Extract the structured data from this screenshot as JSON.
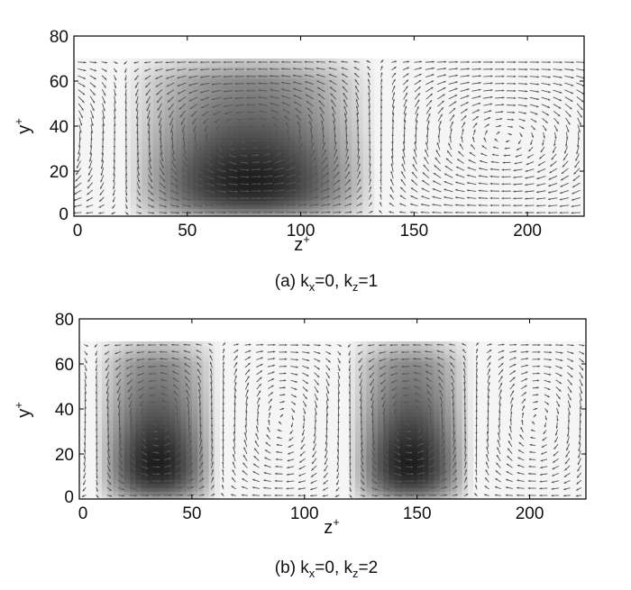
{
  "chart_data": [
    {
      "type": "heatmap",
      "caption": {
        "prefix": "(a) k",
        "sub1": "x",
        "mid": "=0, k",
        "sub2": "z",
        "suffix": "=1"
      },
      "xlabel": {
        "base": "z",
        "sup": "+"
      },
      "ylabel": {
        "base": "y",
        "sup": "+"
      },
      "xlim": [
        0,
        225
      ],
      "ylim": [
        0,
        80
      ],
      "field_top": 70,
      "x_ticks": [
        0,
        50,
        100,
        150,
        200
      ],
      "y_ticks": [
        0,
        20,
        40,
        60,
        80
      ],
      "kz": 1,
      "colormap": "grayscale",
      "vector_overlay": true
    },
    {
      "type": "heatmap",
      "caption": {
        "prefix": "(b) k",
        "sub1": "x",
        "mid": "=0, k",
        "sub2": "z",
        "suffix": "=2"
      },
      "xlabel": {
        "base": "z",
        "sup": "+"
      },
      "ylabel": {
        "base": "y",
        "sup": "+"
      },
      "xlim": [
        0,
        225
      ],
      "ylim": [
        0,
        80
      ],
      "field_top": 70,
      "x_ticks": [
        0,
        50,
        100,
        150,
        200
      ],
      "y_ticks": [
        0,
        20,
        40,
        60,
        80
      ],
      "kz": 2,
      "colormap": "grayscale",
      "vector_overlay": true
    }
  ]
}
